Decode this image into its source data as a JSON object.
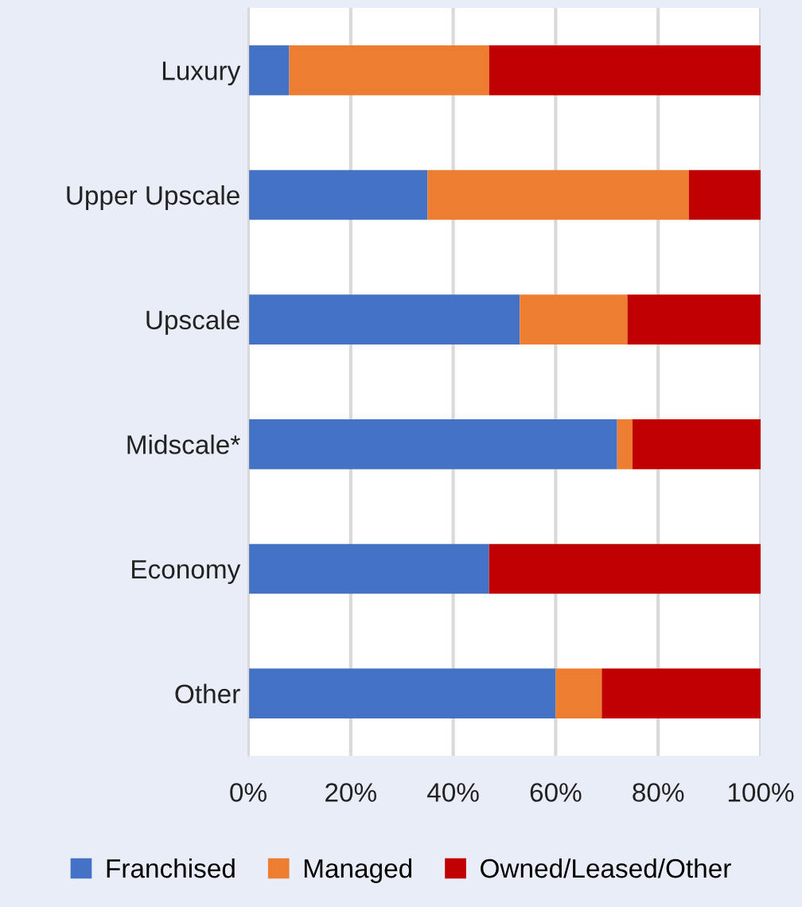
{
  "chart_data": {
    "type": "bar",
    "orientation": "horizontal",
    "stacked": true,
    "categories": [
      "Luxury",
      "Upper Upscale",
      "Upscale",
      "Midscale*",
      "Economy",
      "Other"
    ],
    "series": [
      {
        "name": "Franchised",
        "color": "#4472c4",
        "values": [
          8,
          35,
          53,
          72,
          47,
          60
        ]
      },
      {
        "name": "Managed",
        "color": "#ed7d31",
        "values": [
          39,
          51,
          21,
          3,
          0,
          9
        ]
      },
      {
        "name": "Owned/Leased/Other",
        "color": "#c00000",
        "values": [
          53,
          14,
          26,
          25,
          53,
          31
        ]
      }
    ],
    "xlim": [
      0,
      100
    ],
    "xticks": [
      {
        "value": 0,
        "label": "0%"
      },
      {
        "value": 20,
        "label": "20%"
      },
      {
        "value": 40,
        "label": "40%"
      },
      {
        "value": 60,
        "label": "60%"
      },
      {
        "value": 80,
        "label": "80%"
      },
      {
        "value": 100,
        "label": "100%"
      }
    ],
    "grid": "x",
    "legend": "bottom"
  }
}
